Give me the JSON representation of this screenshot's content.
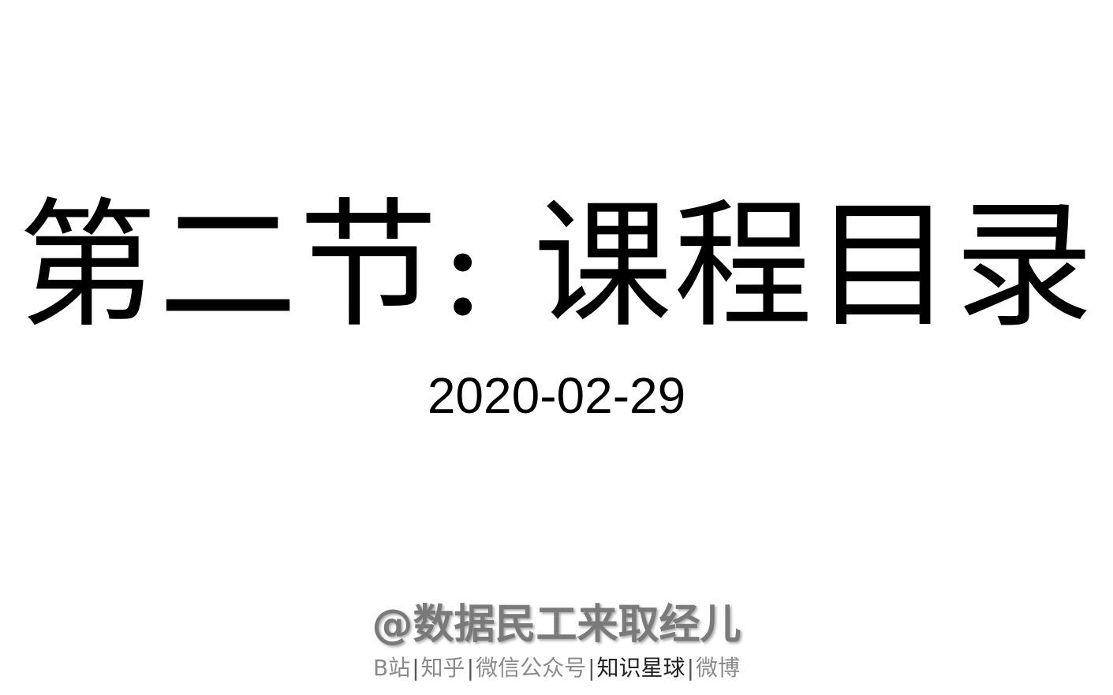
{
  "title": "第二节: 课程目录",
  "date": "2020-02-29",
  "author": "@数据民工来取经儿",
  "platforms": {
    "bilibili": "B站",
    "zhihu": "知乎",
    "wechat": "微信公众号",
    "zsxq": "知识星球",
    "weibo": "微博",
    "separator": "|"
  }
}
